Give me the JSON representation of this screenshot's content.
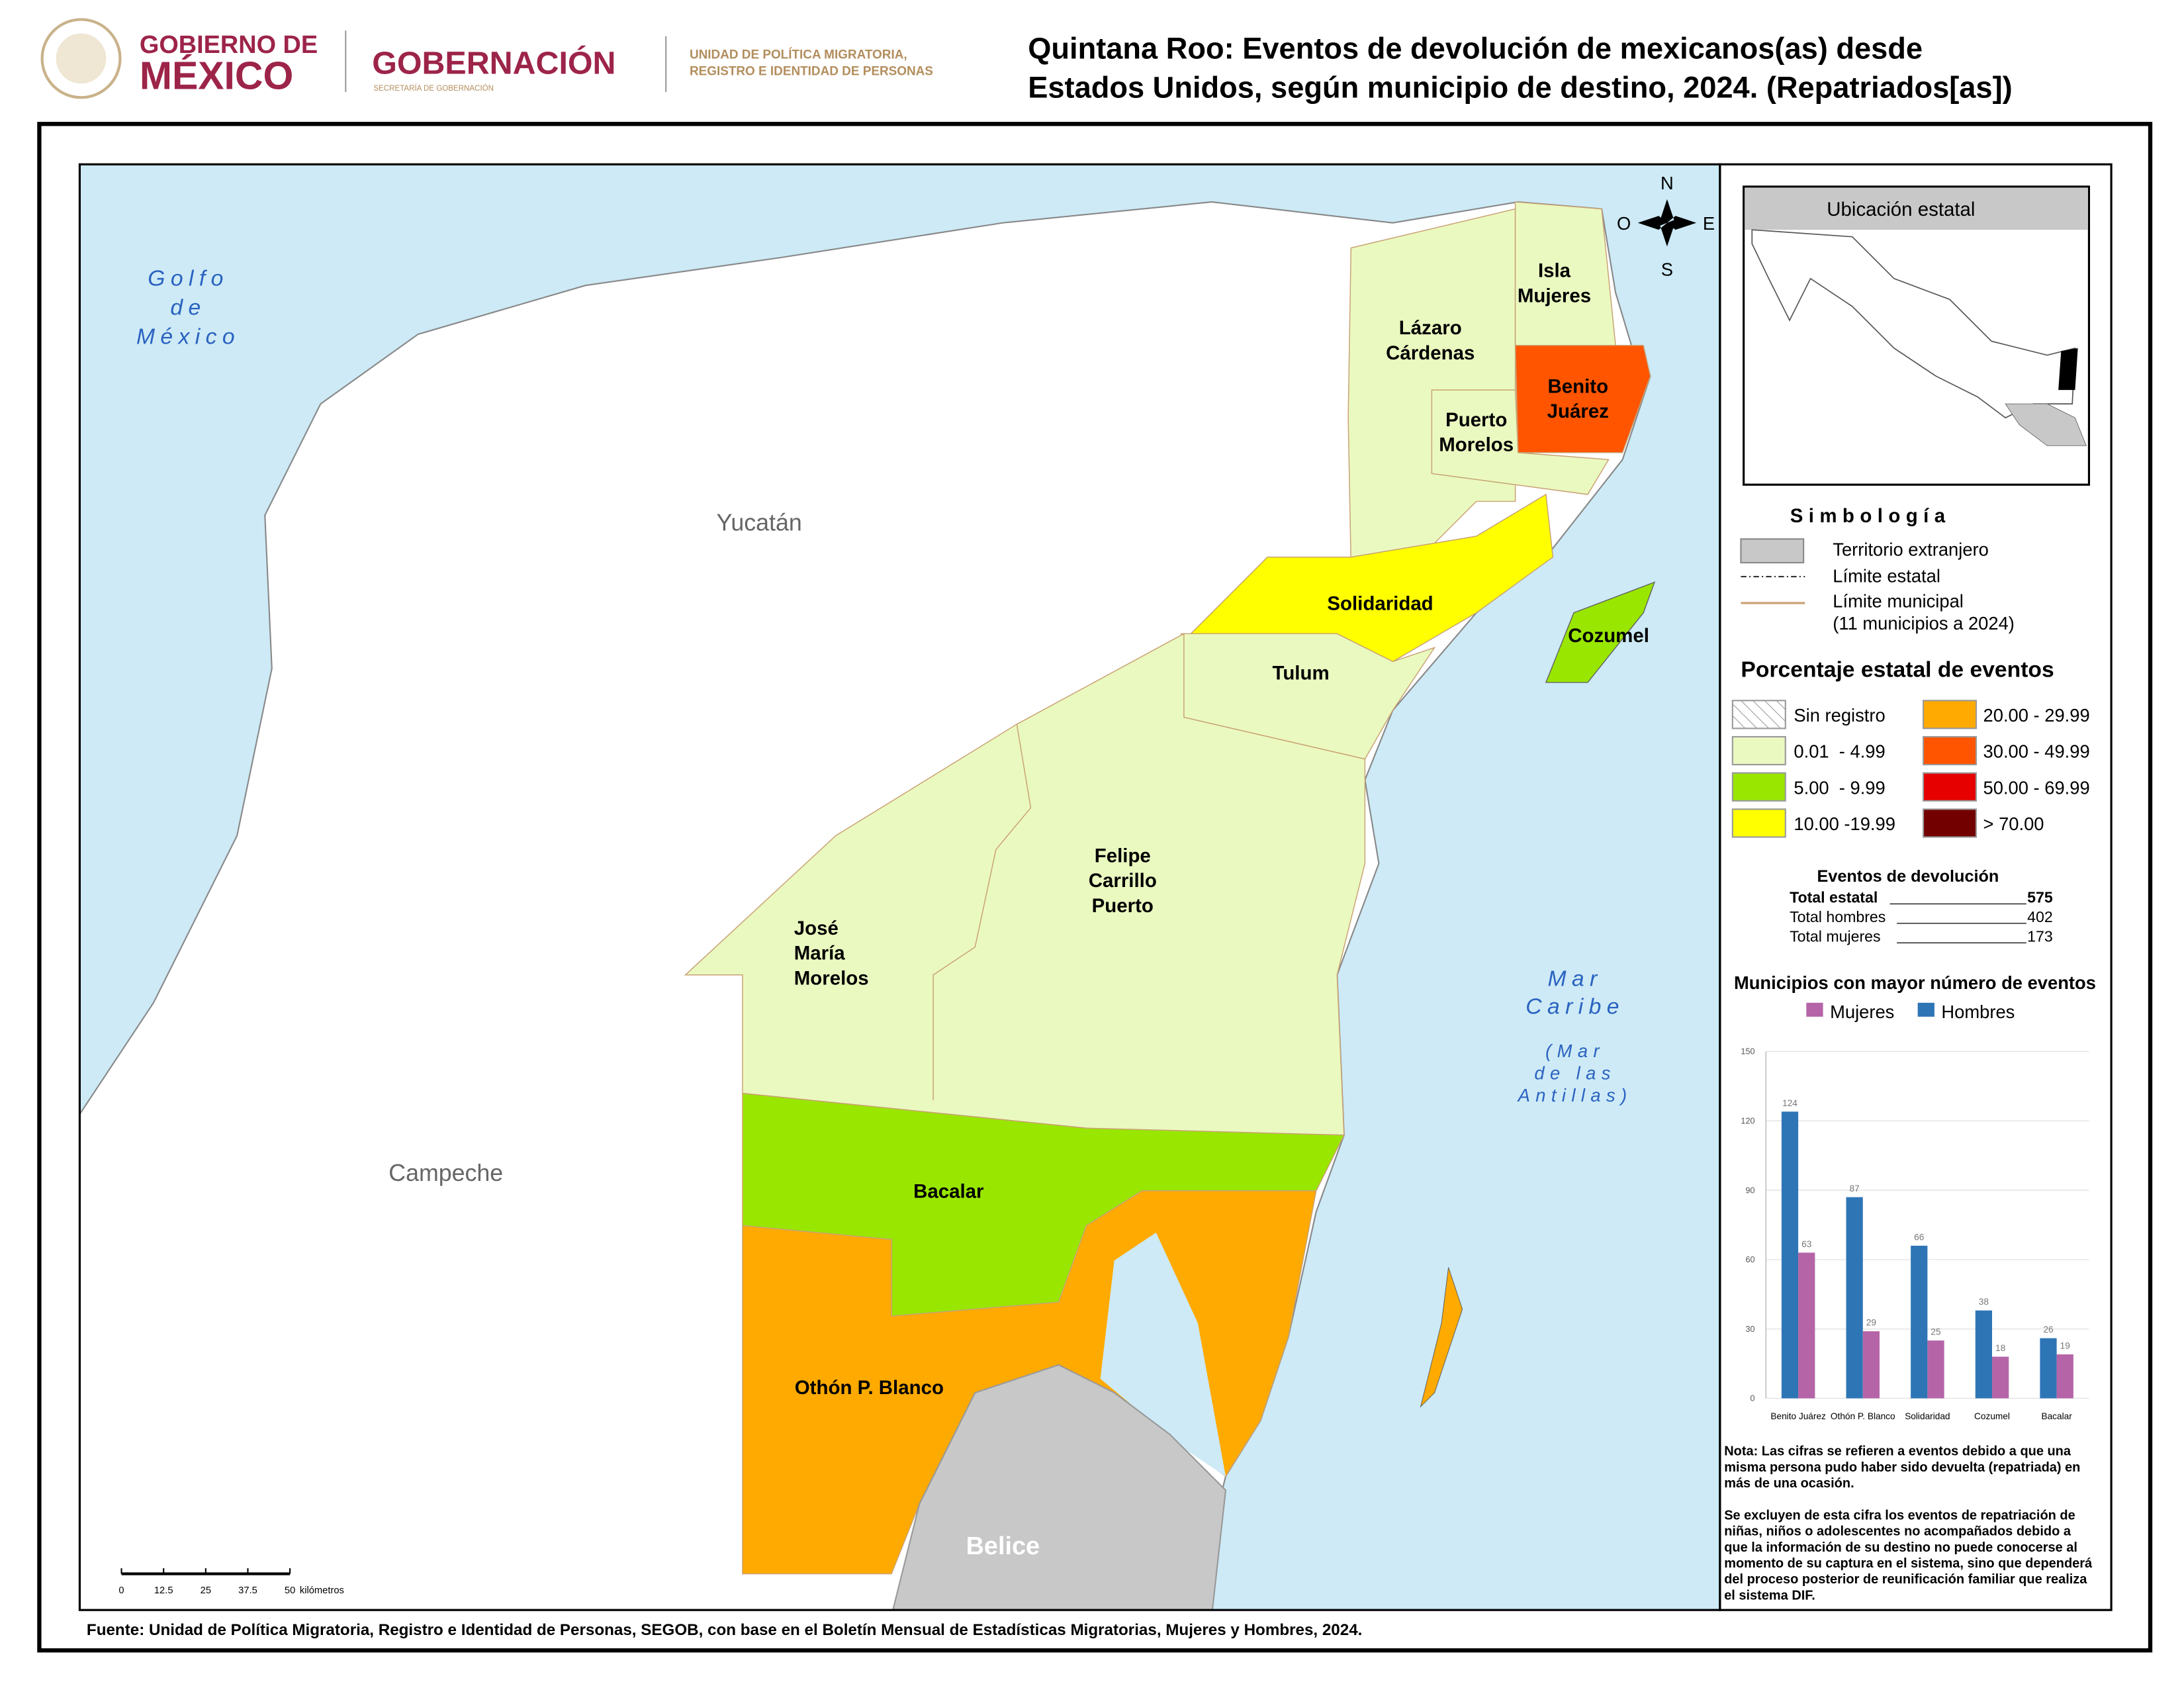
{
  "header": {
    "gobierno": [
      "GOBIERNO DE",
      "MÉXICO"
    ],
    "gobernacion": "GOBERNACIÓN",
    "secretaria": "SECRETARÍA DE GOBERNACIÓN",
    "unidad": [
      "UNIDAD DE POLÍTICA MIGRATORIA,",
      "REGISTRO E IDENTIDAD DE PERSONAS"
    ],
    "title": [
      "Quintana Roo: Eventos de devolución de mexicanos(as) desde",
      "Estados Unidos, según municipio de destino, 2024. (Repatriados[as])"
    ]
  },
  "map": {
    "municipalities": [
      [
        "Lázaro",
        "Cárdenas"
      ],
      [
        "Isla",
        "Mujeres"
      ],
      [
        "Benito",
        "Juárez"
      ],
      [
        "Puerto",
        "Morelos"
      ],
      [
        "Solidaridad"
      ],
      [
        "Cozumel"
      ],
      [
        "Tulum"
      ],
      [
        "Felipe",
        "Carrillo",
        "Puerto"
      ],
      [
        "José",
        "María",
        "Morelos"
      ],
      [
        "Bacalar"
      ],
      [
        "Othón P. Blanco"
      ]
    ],
    "states": [
      "Yucatán",
      "Campeche",
      "Belice"
    ],
    "seas": [
      [
        "Golfo",
        "de",
        "México"
      ],
      [
        "Mar",
        "Caribe"
      ],
      [
        "(Mar",
        "de las",
        "Antillas)"
      ]
    ],
    "compass": [
      "N",
      "O",
      "E",
      "S"
    ],
    "scale": {
      "ticks": [
        0,
        12.5,
        25,
        37.5,
        50
      ],
      "unit": "kilómetros"
    }
  },
  "inset": {
    "title": "Ubicación estatal"
  },
  "legend": {
    "title": "Simbología",
    "items": [
      "Territorio extranjero",
      "Límite estatal",
      "Límite municipal",
      "(11 municipios a 2024)"
    ]
  },
  "classes": {
    "title": "Porcentaje estatal de eventos",
    "items": [
      {
        "label": "Sin registro",
        "color": "#ffffff"
      },
      {
        "label": "0.01  - 4.99",
        "color": "#eaf9c0"
      },
      {
        "label": "5.00  - 9.99",
        "color": "#99e600"
      },
      {
        "label": "10.00 -19.99",
        "color": "#ffff00"
      },
      {
        "label": "20.00 - 29.99",
        "color": "#ffaa00"
      },
      {
        "label": "30.00 - 49.99",
        "color": "#ff5500"
      },
      {
        "label": "50.00 - 69.99",
        "color": "#e60000"
      },
      {
        "label": "> 70.00",
        "color": "#730000"
      }
    ]
  },
  "totals": {
    "title": "Eventos de devolución",
    "rows": [
      {
        "label": "Total estatal",
        "value": 575
      },
      {
        "label": "Total hombres",
        "value": 402
      },
      {
        "label": "Total mujeres",
        "value": 173
      }
    ]
  },
  "chart_data": {
    "type": "bar",
    "title": "Municipios con mayor número de eventos",
    "categories": [
      "Benito Juárez",
      "Othón P. Blanco",
      "Solidaridad",
      "Cozumel",
      "Bacalar"
    ],
    "series": [
      {
        "name": "Hombres",
        "color": "#2e75b6",
        "values": [
          124,
          87,
          66,
          38,
          26
        ]
      },
      {
        "name": "Mujeres",
        "color": "#b565a7",
        "values": [
          63,
          29,
          25,
          18,
          19
        ]
      }
    ],
    "ylim": [
      0,
      150
    ],
    "yticks": [
      0,
      30,
      60,
      90,
      120,
      150
    ],
    "grid": true
  },
  "note": [
    [
      "Nota: Las cifras se refieren a eventos debido a que una",
      "misma persona pudo haber sido devuelta (repatriada) en",
      "más de una ocasión."
    ],
    [
      "Se excluyen de esta cifra los eventos de repatriación de",
      "niñas, niños o adolescentes no acompañados debido a",
      "que la información de su destino no puede conocerse al",
      "momento de su captura en el sistema, sino que dependerá",
      "del proceso posterior de reunificación familiar que realiza",
      "el sistema DIF."
    ]
  ],
  "source": "Fuente: Unidad de Política Migratoria, Registro e Identidad de Personas, SEGOB, con base en el Boletín Mensual de Estadísticas Migratorias, Mujeres y Hombres, 2024."
}
